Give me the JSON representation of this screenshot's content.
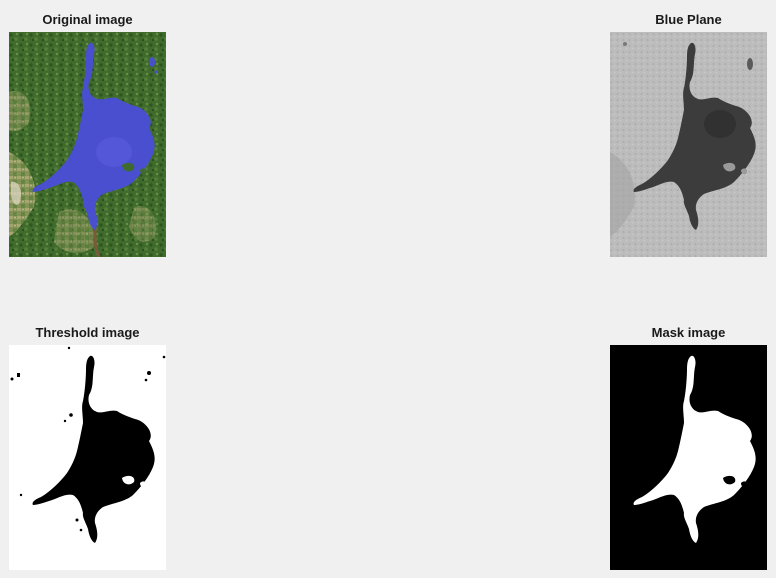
{
  "figure": {
    "background": "#f0f0f0",
    "subplots": [
      {
        "id": "original",
        "title": "Original image"
      },
      {
        "id": "blue",
        "title": "Blue Plane"
      },
      {
        "id": "threshold",
        "title": "Threshold image"
      },
      {
        "id": "mask",
        "title": "Mask image"
      }
    ]
  },
  "colors": {
    "lake_blue": "#4a4fd0",
    "forest_green": "#3f6b2c",
    "blue_plane_gray": "#bdbdbd",
    "blue_plane_dark": "#3a3a3a",
    "mask_white": "#ffffff",
    "mask_black": "#000000"
  }
}
